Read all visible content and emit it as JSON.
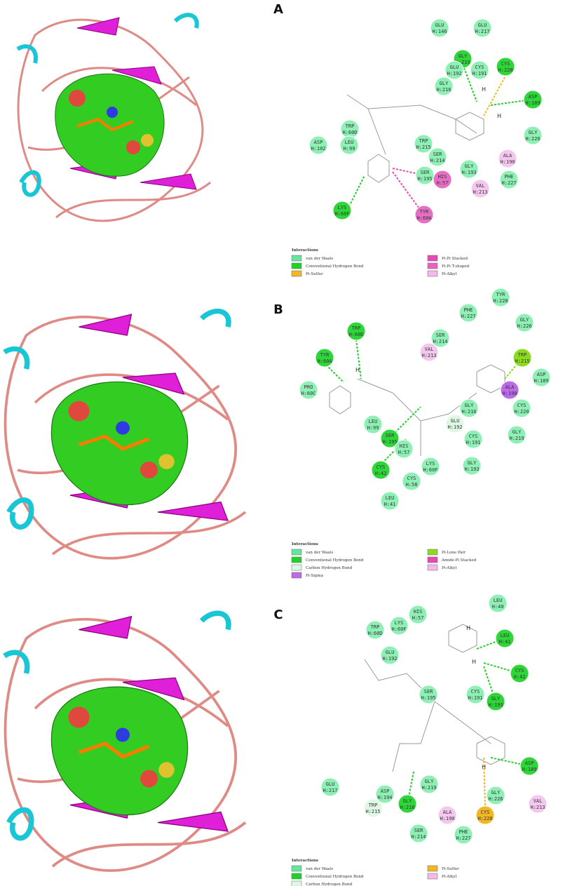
{
  "panels": [
    {
      "label": "A",
      "residues": [
        {
          "name": "GLU",
          "id": "H:146",
          "color": "#8ff0b6"
        },
        {
          "name": "GLU",
          "id": "H:217",
          "color": "#8ff0b6"
        },
        {
          "name": "GLY",
          "id": "H:219",
          "color": "#2fd63a"
        },
        {
          "name": "GLU",
          "id": "H:192",
          "color": "#8ff0b6"
        },
        {
          "name": "CYS",
          "id": "H:191",
          "color": "#8ff0b6"
        },
        {
          "name": "CYS",
          "id": "H:220",
          "color": "#2fd63a"
        },
        {
          "name": "GLY",
          "id": "H:216",
          "color": "#8ff0b6"
        },
        {
          "name": "ASP",
          "id": "H:189",
          "color": "#2fd63a"
        },
        {
          "name": "TRP",
          "id": "H:60D",
          "color": "#8ff0b6"
        },
        {
          "name": "LEU",
          "id": "H:99",
          "color": "#8ff0b6"
        },
        {
          "name": "ASP",
          "id": "H:102",
          "color": "#8ff0b6"
        },
        {
          "name": "GLY",
          "id": "H:226",
          "color": "#8ff0b6"
        },
        {
          "name": "TRP",
          "id": "H:215",
          "color": "#8ff0b6"
        },
        {
          "name": "SER",
          "id": "H:214",
          "color": "#8ff0b6"
        },
        {
          "name": "ALA",
          "id": "H:190",
          "color": "#f4c8ee"
        },
        {
          "name": "SER",
          "id": "H:195",
          "color": "#8ff0b6"
        },
        {
          "name": "HIS",
          "id": "H:57",
          "color": "#e66fc3"
        },
        {
          "name": "GLY",
          "id": "H:193",
          "color": "#8ff0b6"
        },
        {
          "name": "PHE",
          "id": "H:227",
          "color": "#8ff0b6"
        },
        {
          "name": "VAL",
          "id": "H:213",
          "color": "#f4c8ee"
        },
        {
          "name": "LYS",
          "id": "H:60F",
          "color": "#2fd63a"
        },
        {
          "name": "TYR",
          "id": "H:60A",
          "color": "#e66fc3"
        }
      ],
      "atom_labels": [
        "H",
        "H"
      ],
      "legend": {
        "title": "Interactions",
        "items": [
          {
            "label": "van der Waals",
            "color": "#63e6a0"
          },
          {
            "label": "Conventional Hydrogen Bond",
            "color": "#23d02a"
          },
          {
            "label": "Pi-Sulfur",
            "color": "#f1b725"
          },
          {
            "label": "Pi-Pi Stacked",
            "color": "#e649b5"
          },
          {
            "label": "Pi-Pi T-shaped",
            "color": "#e964c0"
          },
          {
            "label": "Pi-Alkyl",
            "color": "#f5b8ea"
          }
        ]
      }
    },
    {
      "label": "B",
      "residues": [
        {
          "name": "TYR",
          "id": "H:228",
          "color": "#8ff0b6"
        },
        {
          "name": "PHE",
          "id": "H:227",
          "color": "#8ff0b6"
        },
        {
          "name": "GLY",
          "id": "H:226",
          "color": "#8ff0b6"
        },
        {
          "name": "TRP",
          "id": "H:60D",
          "color": "#2fd63a"
        },
        {
          "name": "SER",
          "id": "H:214",
          "color": "#8ff0b6"
        },
        {
          "name": "VAL",
          "id": "H:213",
          "color": "#f4c8ee"
        },
        {
          "name": "TRP",
          "id": "H:215",
          "color": "#8bdc1e"
        },
        {
          "name": "TYR",
          "id": "H:60A",
          "color": "#2fd63a"
        },
        {
          "name": "ASP",
          "id": "H:189",
          "color": "#8ff0b6"
        },
        {
          "name": "PRO",
          "id": "H:60C",
          "color": "#8ff0b6"
        },
        {
          "name": "ALA",
          "id": "H:190",
          "color": "#bb6ae8"
        },
        {
          "name": "GLY",
          "id": "H:216",
          "color": "#8ff0b6"
        },
        {
          "name": "CYS",
          "id": "H:220",
          "color": "#8ff0b6"
        },
        {
          "name": "LEU",
          "id": "H:99",
          "color": "#8ff0b6"
        },
        {
          "name": "GLU",
          "id": "H:192",
          "color": "#dff8e6"
        },
        {
          "name": "GLY",
          "id": "H:219",
          "color": "#8ff0b6"
        },
        {
          "name": "SER",
          "id": "H:195",
          "color": "#2fd63a"
        },
        {
          "name": "HIS",
          "id": "H:57",
          "color": "#8ff0b6"
        },
        {
          "name": "CYS",
          "id": "H:191",
          "color": "#8ff0b6"
        },
        {
          "name": "CYS",
          "id": "H:42",
          "color": "#2fd63a"
        },
        {
          "name": "LYS",
          "id": "H:60F",
          "color": "#8ff0b6"
        },
        {
          "name": "GLY",
          "id": "H:193",
          "color": "#8ff0b6"
        },
        {
          "name": "CYS",
          "id": "H:58",
          "color": "#8ff0b6"
        },
        {
          "name": "LEU",
          "id": "H:41",
          "color": "#8ff0b6"
        }
      ],
      "atom_labels": [
        "H"
      ],
      "legend": {
        "title": "Interactions",
        "items": [
          {
            "label": "van der Waals",
            "color": "#63e6a0"
          },
          {
            "label": "Conventional Hydrogen Bond",
            "color": "#23d02a"
          },
          {
            "label": "Carbon Hydrogen Bond",
            "color": "#dff8e6"
          },
          {
            "label": "Pi-Sigma",
            "color": "#bb6ae8"
          },
          {
            "label": "Pi-Lone Pair",
            "color": "#8bdc1e"
          },
          {
            "label": "Amide-Pi Stacked",
            "color": "#e649b5"
          },
          {
            "label": "Pi-Alkyl",
            "color": "#f5b8ea"
          }
        ]
      }
    },
    {
      "label": "C",
      "residues": [
        {
          "name": "LEU",
          "id": "H:40",
          "color": "#8ff0b6"
        },
        {
          "name": "HIS",
          "id": "H:57",
          "color": "#8ff0b6"
        },
        {
          "name": "LYS",
          "id": "H:60F",
          "color": "#8ff0b6"
        },
        {
          "name": "TRP",
          "id": "H:60D",
          "color": "#8ff0b6"
        },
        {
          "name": "LEU",
          "id": "H:41",
          "color": "#2fd63a"
        },
        {
          "name": "GLU",
          "id": "H:192",
          "color": "#8ff0b6"
        },
        {
          "name": "CYS",
          "id": "H:42",
          "color": "#2fd63a"
        },
        {
          "name": "SER",
          "id": "H:195",
          "color": "#8ff0b6"
        },
        {
          "name": "CYS",
          "id": "H:191",
          "color": "#8ff0b6"
        },
        {
          "name": "GLY",
          "id": "H:193",
          "color": "#2fd63a"
        },
        {
          "name": "ASP",
          "id": "H:189",
          "color": "#2fd63a"
        },
        {
          "name": "GLY",
          "id": "H:219",
          "color": "#8ff0b6"
        },
        {
          "name": "GLU",
          "id": "H:217",
          "color": "#8ff0b6"
        },
        {
          "name": "ASP",
          "id": "H:194",
          "color": "#8ff0b6"
        },
        {
          "name": "GLY",
          "id": "H:226",
          "color": "#8ff0b6"
        },
        {
          "name": "VAL",
          "id": "H:213",
          "color": "#f4c8ee"
        },
        {
          "name": "TRP",
          "id": "H:215",
          "color": "#dff8e6"
        },
        {
          "name": "GLY",
          "id": "H:216",
          "color": "#2fd63a"
        },
        {
          "name": "ALA",
          "id": "H:190",
          "color": "#f4c8ee"
        },
        {
          "name": "CYS",
          "id": "H:220",
          "color": "#f1b725"
        },
        {
          "name": "SER",
          "id": "H:214",
          "color": "#8ff0b6"
        },
        {
          "name": "PHE",
          "id": "H:227",
          "color": "#8ff0b6"
        }
      ],
      "atom_labels": [
        "H",
        "H",
        "H"
      ],
      "legend": {
        "title": "Interactions",
        "items": [
          {
            "label": "van der Waals",
            "color": "#63e6a0"
          },
          {
            "label": "Conventional Hydrogen Bond",
            "color": "#23d02a"
          },
          {
            "label": "Carbon Hydrogen Bond",
            "color": "#dff8e6"
          },
          {
            "label": "Pi-Sulfur",
            "color": "#f1b725"
          },
          {
            "label": "Pi-Alkyl",
            "color": "#f5b8ea"
          }
        ]
      }
    }
  ]
}
